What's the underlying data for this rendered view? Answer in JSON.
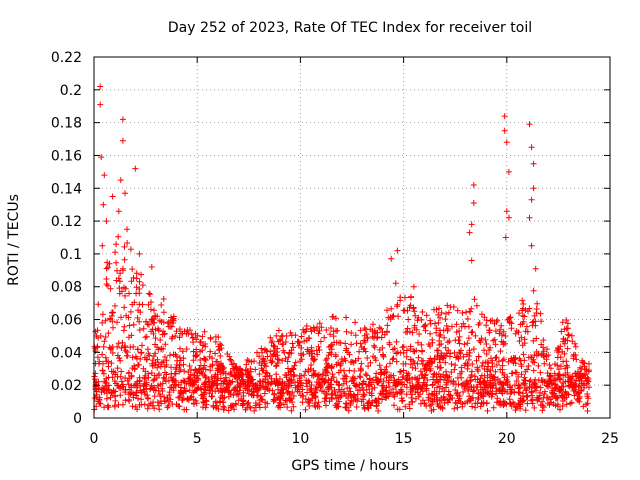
{
  "chart_data": {
    "type": "scatter",
    "title": "Day 252 of 2023, Rate Of TEC Index for receiver toil",
    "xlabel": "GPS time / hours",
    "ylabel": "ROTI / TECUs",
    "xlim": [
      0,
      25
    ],
    "ylim": [
      0,
      0.22
    ],
    "x_ticks": [
      0,
      5,
      10,
      15,
      20,
      25
    ],
    "x_tick_labels": [
      "0",
      "5",
      "10",
      "15",
      "20",
      "25"
    ],
    "y_ticks": [
      0,
      0.02,
      0.04,
      0.06,
      0.08,
      0.1,
      0.12,
      0.14,
      0.16,
      0.18,
      0.2,
      0.22
    ],
    "y_tick_labels": [
      "0",
      "0.02",
      "0.04",
      "0.06",
      "0.08",
      "0.1",
      "0.12",
      "0.14",
      "0.16",
      "0.18",
      "0.2",
      "0.22"
    ],
    "grid": true,
    "marker": "+",
    "color": "#ff0000",
    "time_end_hours": 24,
    "envelope": [
      [
        0.0,
        0.045
      ],
      [
        0.3,
        0.095
      ],
      [
        0.7,
        0.1
      ],
      [
        1.0,
        0.11
      ],
      [
        1.5,
        0.12
      ],
      [
        2.0,
        0.1
      ],
      [
        2.5,
        0.085
      ],
      [
        3.0,
        0.07
      ],
      [
        3.5,
        0.075
      ],
      [
        4.0,
        0.06
      ],
      [
        5.0,
        0.055
      ],
      [
        6.0,
        0.05
      ],
      [
        7.0,
        0.03
      ],
      [
        8.0,
        0.045
      ],
      [
        9.0,
        0.055
      ],
      [
        10.0,
        0.055
      ],
      [
        11.0,
        0.06
      ],
      [
        12.0,
        0.065
      ],
      [
        13.0,
        0.055
      ],
      [
        14.0,
        0.06
      ],
      [
        14.5,
        0.085
      ],
      [
        15.0,
        0.08
      ],
      [
        16.0,
        0.065
      ],
      [
        17.0,
        0.07
      ],
      [
        18.0,
        0.07
      ],
      [
        18.5,
        0.075
      ],
      [
        19.0,
        0.06
      ],
      [
        20.0,
        0.06
      ],
      [
        20.5,
        0.07
      ],
      [
        21.0,
        0.075
      ],
      [
        21.5,
        0.08
      ],
      [
        22.0,
        0.04
      ],
      [
        22.3,
        0.03
      ],
      [
        22.5,
        0.065
      ],
      [
        23.0,
        0.06
      ],
      [
        23.5,
        0.04
      ],
      [
        24.0,
        0.035
      ]
    ],
    "spikes": [
      [
        0.3,
        0.202
      ],
      [
        0.3,
        0.191
      ],
      [
        0.35,
        0.159
      ],
      [
        0.45,
        0.13
      ],
      [
        0.5,
        0.148
      ],
      [
        0.6,
        0.12
      ],
      [
        0.9,
        0.135
      ],
      [
        1.2,
        0.126
      ],
      [
        1.3,
        0.145
      ],
      [
        1.4,
        0.182
      ],
      [
        1.4,
        0.169
      ],
      [
        1.5,
        0.137
      ],
      [
        1.6,
        0.115
      ],
      [
        2.0,
        0.152
      ],
      [
        2.2,
        0.1
      ],
      [
        2.8,
        0.092
      ],
      [
        0.4,
        0.105
      ],
      [
        14.7,
        0.102
      ],
      [
        14.4,
        0.097
      ],
      [
        15.5,
        0.08
      ],
      [
        18.4,
        0.142
      ],
      [
        18.4,
        0.131
      ],
      [
        18.3,
        0.118
      ],
      [
        18.2,
        0.113
      ],
      [
        18.3,
        0.096
      ],
      [
        19.9,
        0.184
      ],
      [
        19.9,
        0.175
      ],
      [
        20.0,
        0.168
      ],
      [
        20.1,
        0.15
      ],
      [
        20.0,
        0.126
      ],
      [
        19.95,
        0.11
      ],
      [
        20.1,
        0.122
      ],
      [
        21.1,
        0.179
      ],
      [
        21.2,
        0.165
      ],
      [
        21.3,
        0.155
      ],
      [
        21.3,
        0.14
      ],
      [
        21.2,
        0.133
      ],
      [
        21.1,
        0.122
      ],
      [
        21.2,
        0.105
      ],
      [
        21.4,
        0.091
      ]
    ]
  }
}
